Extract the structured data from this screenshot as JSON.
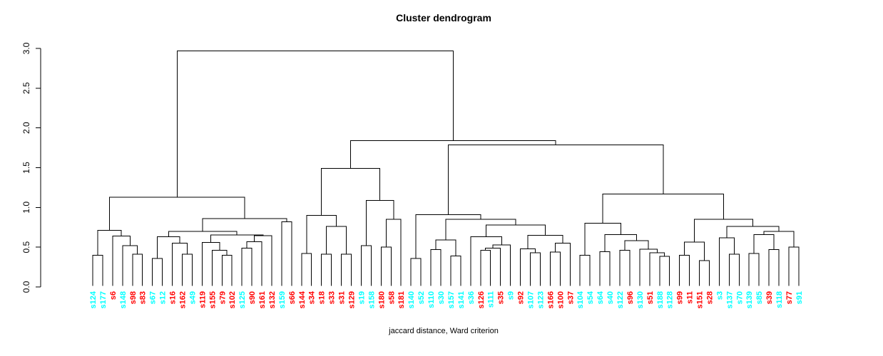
{
  "title": "Cluster dendrogram",
  "xlabel": "jaccard distance, Ward criterion",
  "y_axis": {
    "ticks": [
      "0.0",
      "0.5",
      "1.0",
      "1.5",
      "2.0",
      "2.5",
      "3.0"
    ],
    "min": 0.0,
    "max": 3.0
  },
  "colors": {
    "red": "#ff0000",
    "cyan": "#00ffff",
    "line": "#000000"
  },
  "chart_data": {
    "type": "dendrogram",
    "ylim": [
      0,
      3
    ],
    "root_height": 2.97,
    "leaves": [
      {
        "label": "s124",
        "color": "cyan"
      },
      {
        "label": "s177",
        "color": "cyan"
      },
      {
        "label": "s6",
        "color": "red"
      },
      {
        "label": "s148",
        "color": "cyan"
      },
      {
        "label": "s98",
        "color": "red"
      },
      {
        "label": "s83",
        "color": "red"
      },
      {
        "label": "s67",
        "color": "cyan"
      },
      {
        "label": "s12",
        "color": "cyan"
      },
      {
        "label": "s16",
        "color": "red"
      },
      {
        "label": "s162",
        "color": "red"
      },
      {
        "label": "s49",
        "color": "cyan"
      },
      {
        "label": "s119",
        "color": "red"
      },
      {
        "label": "s155",
        "color": "red"
      },
      {
        "label": "s79",
        "color": "red"
      },
      {
        "label": "s102",
        "color": "red"
      },
      {
        "label": "s125",
        "color": "cyan"
      },
      {
        "label": "s90",
        "color": "red"
      },
      {
        "label": "s161",
        "color": "red"
      },
      {
        "label": "s132",
        "color": "red"
      },
      {
        "label": "s159",
        "color": "cyan"
      },
      {
        "label": "s66",
        "color": "red"
      },
      {
        "label": "s144",
        "color": "red"
      },
      {
        "label": "s34",
        "color": "red"
      },
      {
        "label": "s18",
        "color": "red"
      },
      {
        "label": "s33",
        "color": "red"
      },
      {
        "label": "s31",
        "color": "red"
      },
      {
        "label": "s129",
        "color": "red"
      },
      {
        "label": "s19",
        "color": "cyan"
      },
      {
        "label": "s158",
        "color": "cyan"
      },
      {
        "label": "s180",
        "color": "red"
      },
      {
        "label": "s58",
        "color": "red"
      },
      {
        "label": "s181",
        "color": "red"
      },
      {
        "label": "s140",
        "color": "cyan"
      },
      {
        "label": "s52",
        "color": "cyan"
      },
      {
        "label": "s110",
        "color": "cyan"
      },
      {
        "label": "s30",
        "color": "cyan"
      },
      {
        "label": "s157",
        "color": "cyan"
      },
      {
        "label": "s141",
        "color": "cyan"
      },
      {
        "label": "s36",
        "color": "cyan"
      },
      {
        "label": "s126",
        "color": "red"
      },
      {
        "label": "s111",
        "color": "cyan"
      },
      {
        "label": "s35",
        "color": "red"
      },
      {
        "label": "s9",
        "color": "cyan"
      },
      {
        "label": "s92",
        "color": "red"
      },
      {
        "label": "s107",
        "color": "cyan"
      },
      {
        "label": "s123",
        "color": "cyan"
      },
      {
        "label": "s166",
        "color": "red"
      },
      {
        "label": "s100",
        "color": "red"
      },
      {
        "label": "s37",
        "color": "red"
      },
      {
        "label": "s104",
        "color": "cyan"
      },
      {
        "label": "s54",
        "color": "cyan"
      },
      {
        "label": "s64",
        "color": "cyan"
      },
      {
        "label": "s40",
        "color": "cyan"
      },
      {
        "label": "s122",
        "color": "cyan"
      },
      {
        "label": "s96",
        "color": "red"
      },
      {
        "label": "s130",
        "color": "cyan"
      },
      {
        "label": "s51",
        "color": "red"
      },
      {
        "label": "s188",
        "color": "cyan"
      },
      {
        "label": "s128",
        "color": "cyan"
      },
      {
        "label": "s99",
        "color": "red"
      },
      {
        "label": "s11",
        "color": "red"
      },
      {
        "label": "s151",
        "color": "red"
      },
      {
        "label": "s28",
        "color": "red"
      },
      {
        "label": "s3",
        "color": "cyan"
      },
      {
        "label": "s137",
        "color": "cyan"
      },
      {
        "label": "s70",
        "color": "cyan"
      },
      {
        "label": "s139",
        "color": "cyan"
      },
      {
        "label": "s85",
        "color": "cyan"
      },
      {
        "label": "s39",
        "color": "red"
      },
      {
        "label": "s118",
        "color": "cyan"
      },
      {
        "label": "s77",
        "color": "red"
      },
      {
        "label": "s91",
        "color": "cyan"
      }
    ],
    "tree": {
      "h": 2.97,
      "c": [
        {
          "h": 1.13,
          "c": [
            {
              "h": 0.71,
              "c": [
                {
                  "h": 0.4,
                  "c": [
                    "s124",
                    "s177"
                  ]
                },
                {
                  "h": 0.64,
                  "c": [
                    "s6",
                    {
                      "h": 0.52,
                      "c": [
                        "s148",
                        {
                          "h": 0.41,
                          "c": [
                            "s98",
                            "s83"
                          ]
                        }
                      ]
                    }
                  ]
                }
              ]
            },
            {
              "h": 0.86,
              "c": [
                {
                  "h": 0.7,
                  "c": [
                    {
                      "h": 0.63,
                      "c": [
                        {
                          "h": 0.36,
                          "c": [
                            "s67",
                            "s12"
                          ]
                        },
                        {
                          "h": 0.55,
                          "c": [
                            "s16",
                            {
                              "h": 0.41,
                              "c": [
                                "s162",
                                "s49"
                              ]
                            }
                          ]
                        }
                      ]
                    },
                    {
                      "h": 0.655,
                      "c": [
                        {
                          "h": 0.56,
                          "c": [
                            "s119",
                            {
                              "h": 0.46,
                              "c": [
                                "s155",
                                {
                                  "h": 0.4,
                                  "c": [
                                    "s79",
                                    "s102"
                                  ]
                                }
                              ]
                            }
                          ]
                        },
                        {
                          "h": 0.645,
                          "c": [
                            {
                              "h": 0.57,
                              "c": [
                                {
                                  "h": 0.49,
                                  "c": [
                                    "s125",
                                    "s90"
                                  ]
                                },
                                "s161"
                              ]
                            },
                            "s132"
                          ]
                        }
                      ]
                    }
                  ]
                },
                {
                  "h": 0.82,
                  "c": [
                    "s159",
                    "s66"
                  ]
                }
              ]
            }
          ]
        },
        {
          "h": 1.84,
          "c": [
            {
              "h": 1.49,
              "c": [
                {
                  "h": 0.9,
                  "c": [
                    {
                      "h": 0.42,
                      "c": [
                        "s144",
                        "s34"
                      ]
                    },
                    {
                      "h": 0.76,
                      "c": [
                        {
                          "h": 0.41,
                          "c": [
                            "s18",
                            "s33"
                          ]
                        },
                        {
                          "h": 0.41,
                          "c": [
                            "s31",
                            "s129"
                          ]
                        }
                      ]
                    }
                  ]
                },
                {
                  "h": 1.09,
                  "c": [
                    {
                      "h": 0.52,
                      "c": [
                        "s19",
                        "s158"
                      ]
                    },
                    {
                      "h": 0.85,
                      "c": [
                        {
                          "h": 0.5,
                          "c": [
                            "s180",
                            "s58"
                          ]
                        },
                        "s181"
                      ]
                    }
                  ]
                }
              ]
            },
            {
              "h": 1.785,
              "c": [
                {
                  "h": 0.91,
                  "c": [
                    {
                      "h": 0.36,
                      "c": [
                        "s140",
                        "s52"
                      ]
                    },
                    {
                      "h": 0.85,
                      "c": [
                        {
                          "h": 0.59,
                          "c": [
                            {
                              "h": 0.47,
                              "c": [
                                "s110",
                                "s30"
                              ]
                            },
                            {
                              "h": 0.39,
                              "c": [
                                "s157",
                                "s141"
                              ]
                            }
                          ]
                        },
                        {
                          "h": 0.78,
                          "c": [
                            {
                              "h": 0.63,
                              "c": [
                                "s36",
                                {
                                  "h": 0.53,
                                  "c": [
                                    {
                                      "h": 0.49,
                                      "c": [
                                        {
                                          "h": 0.46,
                                          "c": [
                                            "s126",
                                            "s111"
                                          ]
                                        },
                                        "s35"
                                      ]
                                    },
                                    "s9"
                                  ]
                                }
                              ]
                            },
                            {
                              "h": 0.65,
                              "c": [
                                {
                                  "h": 0.48,
                                  "c": [
                                    "s92",
                                    {
                                      "h": 0.43,
                                      "c": [
                                        "s107",
                                        "s123"
                                      ]
                                    }
                                  ]
                                },
                                {
                                  "h": 0.55,
                                  "c": [
                                    {
                                      "h": 0.44,
                                      "c": [
                                        "s166",
                                        "s100"
                                      ]
                                    },
                                    "s37"
                                  ]
                                }
                              ]
                            }
                          ]
                        }
                      ]
                    }
                  ]
                },
                {
                  "h": 1.17,
                  "c": [
                    {
                      "h": 0.8,
                      "c": [
                        {
                          "h": 0.4,
                          "c": [
                            "s104",
                            "s54"
                          ]
                        },
                        {
                          "h": 0.66,
                          "c": [
                            {
                              "h": 0.445,
                              "c": [
                                "s64",
                                "s40"
                              ]
                            },
                            {
                              "h": 0.58,
                              "c": [
                                {
                                  "h": 0.46,
                                  "c": [
                                    "s122",
                                    "s96"
                                  ]
                                },
                                {
                                  "h": 0.475,
                                  "c": [
                                    "s130",
                                    {
                                      "h": 0.43,
                                      "c": [
                                        "s51",
                                        {
                                          "h": 0.385,
                                          "c": [
                                            "s188",
                                            "s128"
                                          ]
                                        }
                                      ]
                                    }
                                  ]
                                }
                              ]
                            }
                          ]
                        }
                      ]
                    },
                    {
                      "h": 0.85,
                      "c": [
                        {
                          "h": 0.565,
                          "c": [
                            {
                              "h": 0.4,
                              "c": [
                                "s99",
                                "s11"
                              ]
                            },
                            {
                              "h": 0.33,
                              "c": [
                                "s151",
                                "s28"
                              ]
                            }
                          ]
                        },
                        {
                          "h": 0.76,
                          "c": [
                            {
                              "h": 0.62,
                              "c": [
                                "s3",
                                {
                                  "h": 0.41,
                                  "c": [
                                    "s137",
                                    "s70"
                                  ]
                                }
                              ]
                            },
                            {
                              "h": 0.7,
                              "c": [
                                {
                                  "h": 0.66,
                                  "c": [
                                    {
                                      "h": 0.42,
                                      "c": [
                                        "s139",
                                        "s85"
                                      ]
                                    },
                                    {
                                      "h": 0.47,
                                      "c": [
                                        "s39",
                                        "s118"
                                      ]
                                    }
                                  ]
                                },
                                {
                                  "h": 0.5,
                                  "c": [
                                    "s77",
                                    "s91"
                                  ]
                                }
                              ]
                            }
                          ]
                        }
                      ]
                    }
                  ]
                }
              ]
            }
          ]
        }
      ]
    }
  }
}
